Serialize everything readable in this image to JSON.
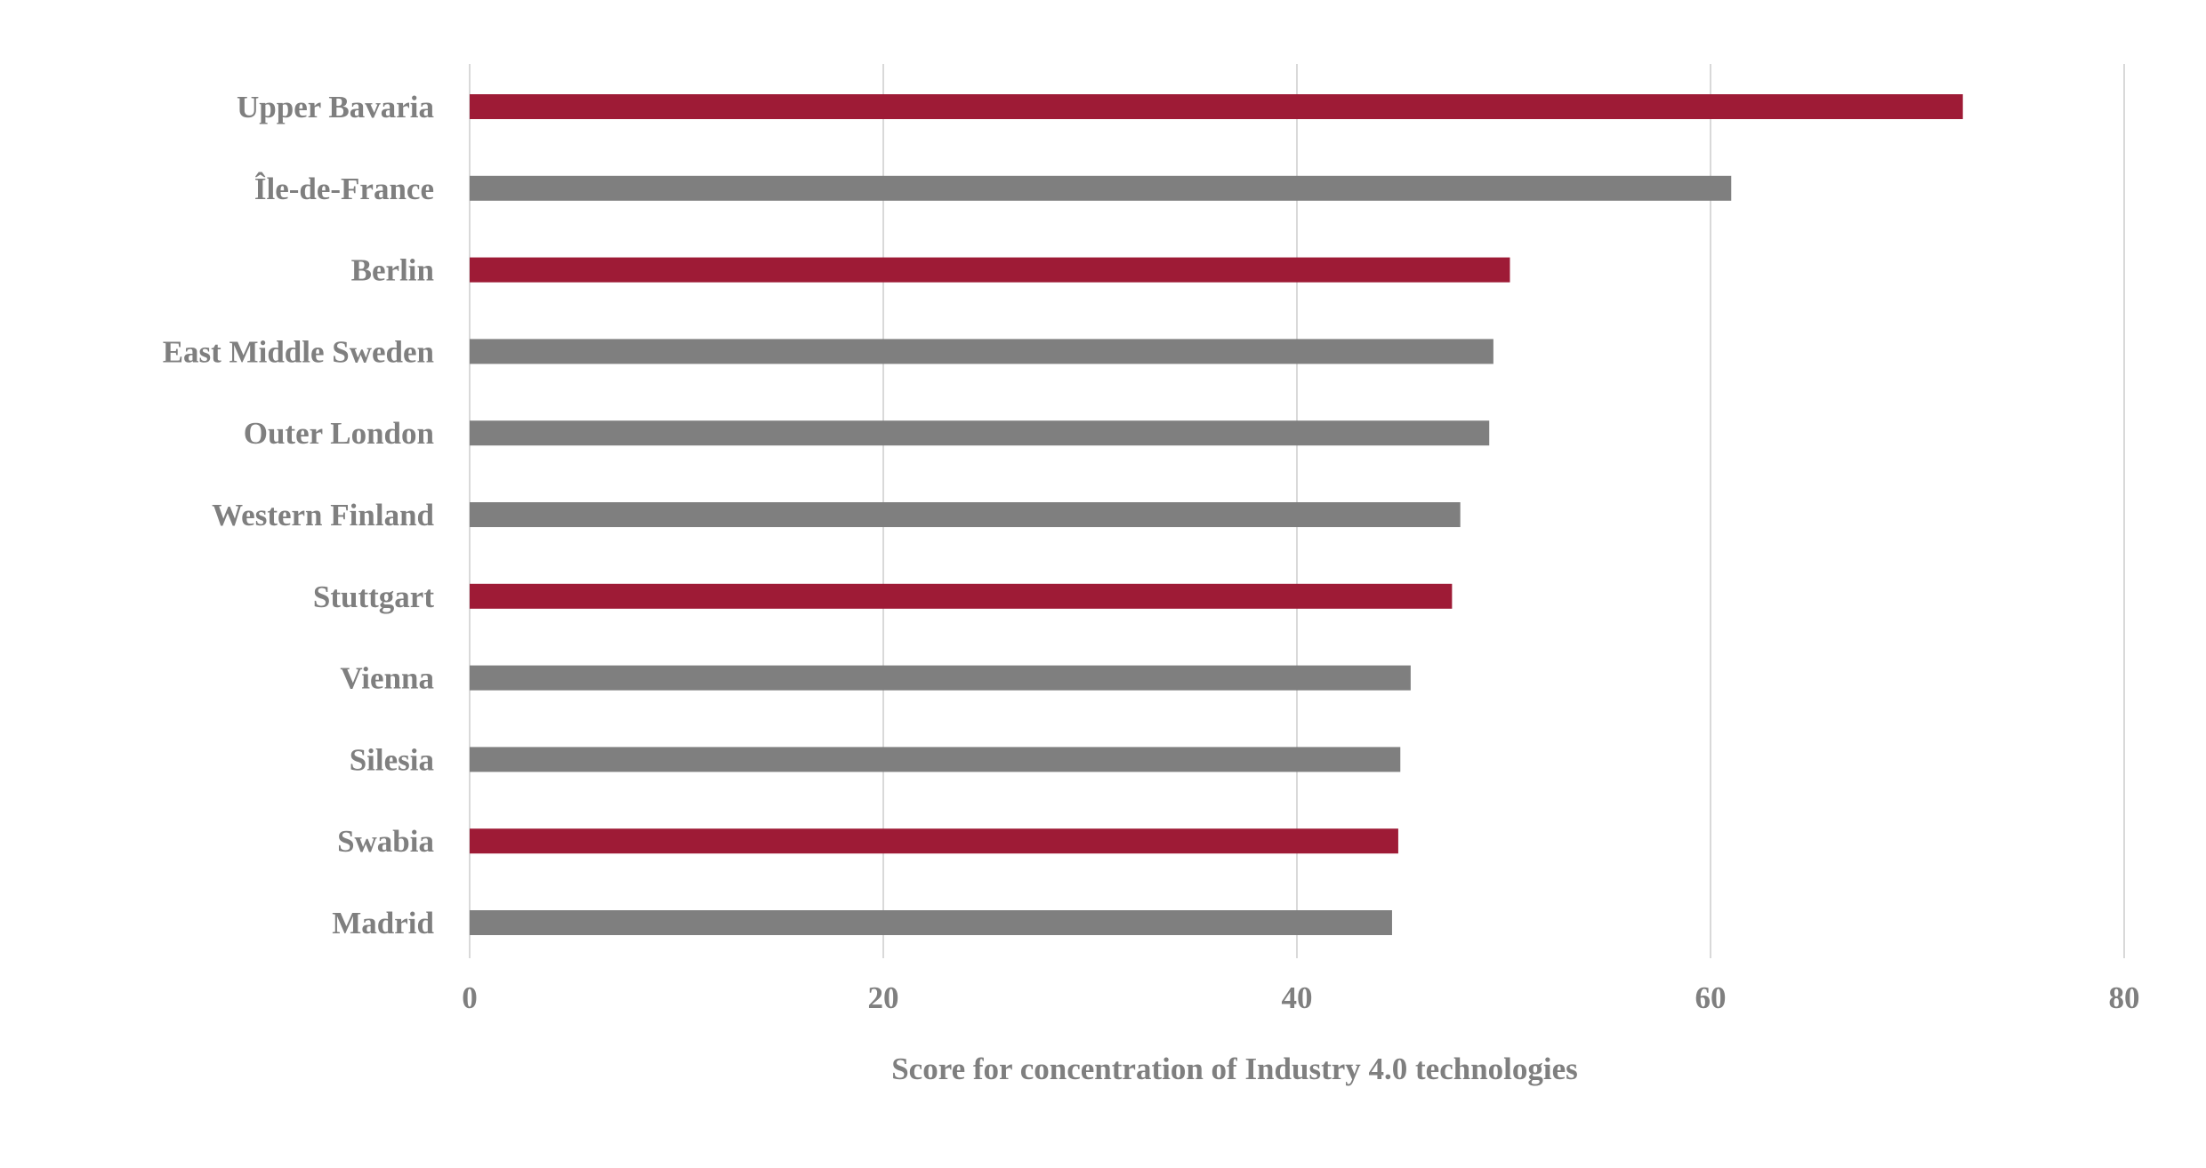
{
  "chart_data": {
    "type": "bar",
    "orientation": "horizontal",
    "categories": [
      "Upper Bavaria",
      "Île-de-France",
      "Berlin",
      "East Middle Sweden",
      "Outer London",
      "Western Finland",
      "Stuttgart",
      "Vienna",
      "Silesia",
      "Swabia",
      "Madrid"
    ],
    "values": [
      72.2,
      61.0,
      50.3,
      49.5,
      49.3,
      47.9,
      47.5,
      45.5,
      45.0,
      44.9,
      44.6
    ],
    "bar_colors": [
      "#9e1b36",
      "#7f7f7f",
      "#9e1b36",
      "#7f7f7f",
      "#7f7f7f",
      "#7f7f7f",
      "#9e1b36",
      "#7f7f7f",
      "#7f7f7f",
      "#9e1b36",
      "#7f7f7f"
    ],
    "title": "",
    "xlabel": "Score for concentration of Industry 4.0 technologies",
    "ylabel": "",
    "xlim": [
      0,
      80
    ],
    "xticks": [
      "0",
      "20",
      "40",
      "60",
      "80"
    ],
    "grid": "vertical",
    "legend": "none",
    "colors": {
      "highlight": "#9e1b36",
      "default": "#7f7f7f",
      "grid": "#d9d9d9",
      "text": "#7f7f7f"
    }
  }
}
